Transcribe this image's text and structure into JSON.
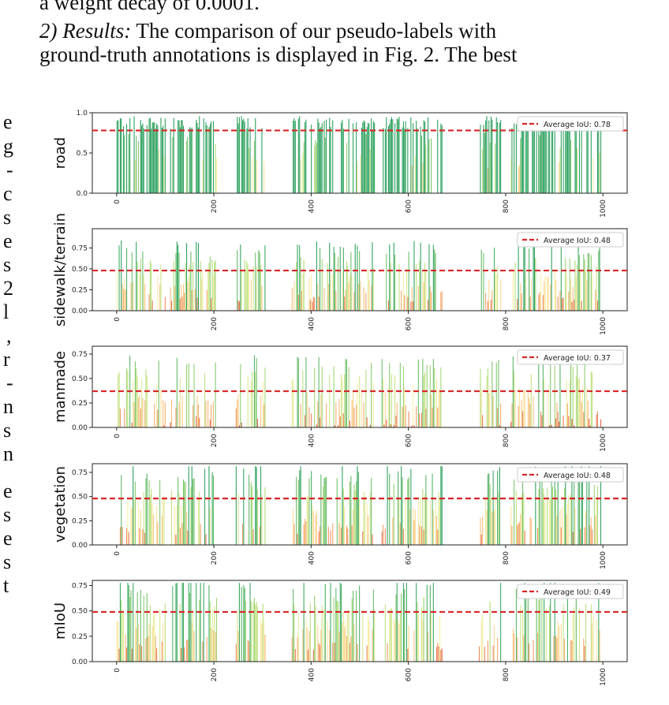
{
  "text_top": "a weight decay of 0.0001.",
  "para_heading": "2) Results:",
  "para_line1_rest": " The comparison of our pseudo-labels with",
  "para_line2": "ground-truth annotations is displayed in Fig. 2. The best",
  "left_margin_letters": [
    "e",
    "g",
    "-",
    "c",
    "s",
    "e",
    "s",
    "2",
    "l",
    ",",
    "r",
    "-",
    "n",
    "s",
    "n",
    "e",
    "s",
    "e",
    "s",
    "t"
  ],
  "colors": {
    "avg_line": "#d62728",
    "bar_high": "#1a9850",
    "bar_mid": "#d9ef8b",
    "bar_low": "#d73027"
  },
  "chart_data": [
    {
      "type": "bar",
      "ylabel": "road",
      "yticks": [
        "0.0",
        "0.5",
        "1.0"
      ],
      "ylim": [
        0,
        1.0
      ],
      "xticks": [
        "0",
        "200",
        "400",
        "600",
        "800",
        "1000"
      ],
      "xlim": [
        -50,
        1050
      ],
      "legend": "Average IoU: 0.78",
      "average": 0.78,
      "legend_position": "top-right"
    },
    {
      "type": "bar",
      "ylabel": "sidewalk/terrain",
      "yticks": [
        "0.00",
        "0.25",
        "0.50",
        "0.75"
      ],
      "ylim": [
        0,
        0.98
      ],
      "xticks": [
        "0",
        "200",
        "400",
        "600",
        "800",
        "1000"
      ],
      "xlim": [
        -50,
        1050
      ],
      "legend": "Average IoU: 0.48",
      "average": 0.48,
      "legend_position": "top-right"
    },
    {
      "type": "bar",
      "ylabel": "manmade",
      "yticks": [
        "0.00",
        "0.25",
        "0.50",
        "0.75"
      ],
      "ylim": [
        0,
        0.83
      ],
      "xticks": [
        "0",
        "200",
        "400",
        "600",
        "800",
        "1000"
      ],
      "xlim": [
        -50,
        1050
      ],
      "legend": "Average IoU: 0.37",
      "average": 0.37,
      "legend_position": "top-right"
    },
    {
      "type": "bar",
      "ylabel": "vegetation",
      "yticks": [
        "0.00",
        "0.25",
        "0.50",
        "0.75"
      ],
      "ylim": [
        0,
        0.84
      ],
      "xticks": [
        "0",
        "200",
        "400",
        "600",
        "800",
        "1000"
      ],
      "xlim": [
        -50,
        1050
      ],
      "legend": "Average IoU: 0.48",
      "average": 0.48,
      "legend_position": "top-right"
    },
    {
      "type": "bar",
      "ylabel": "mIoU",
      "yticks": [
        "0.00",
        "0.25",
        "0.50",
        "0.75"
      ],
      "ylim": [
        0,
        0.8
      ],
      "xticks": [
        "0",
        "200",
        "400",
        "600",
        "800",
        "1000"
      ],
      "xlim": [
        -50,
        1050
      ],
      "legend": "Average IoU: 0.49",
      "average": 0.49,
      "legend_position": "top-right"
    }
  ]
}
